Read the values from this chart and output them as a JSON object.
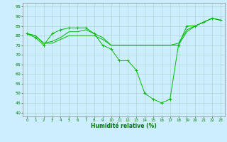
{
  "title": "",
  "xlabel": "Humidité relative (%)",
  "ylabel": "",
  "background_color": "#cceeff",
  "grid_color": "#aacccc",
  "line_color": "#00bb00",
  "xlim": [
    -0.5,
    23.5
  ],
  "ylim": [
    38,
    97
  ],
  "yticks": [
    40,
    45,
    50,
    55,
    60,
    65,
    70,
    75,
    80,
    85,
    90,
    95
  ],
  "xticks": [
    0,
    1,
    2,
    3,
    4,
    5,
    6,
    7,
    8,
    9,
    10,
    11,
    12,
    13,
    14,
    15,
    16,
    17,
    18,
    19,
    20,
    21,
    22,
    23
  ],
  "series": [
    {
      "x": [
        0,
        1,
        2,
        3,
        4,
        5,
        6,
        7,
        8,
        9,
        10,
        11,
        12,
        13,
        14,
        15,
        16,
        17,
        18,
        19,
        20,
        21,
        22,
        23
      ],
      "y": [
        81,
        79,
        75,
        81,
        83,
        84,
        84,
        84,
        81,
        75,
        73,
        67,
        67,
        62,
        50,
        47,
        45,
        47,
        75,
        85,
        85,
        87,
        89,
        88
      ],
      "marker": true
    },
    {
      "x": [
        0,
        1,
        2,
        3,
        4,
        5,
        6,
        7,
        8,
        9,
        10,
        11,
        12,
        13,
        14,
        15,
        16,
        17,
        18,
        19,
        20,
        21,
        22,
        23
      ],
      "y": [
        81,
        80,
        76,
        76,
        78,
        80,
        80,
        80,
        80,
        78,
        75,
        75,
        75,
        75,
        75,
        75,
        75,
        75,
        75,
        82,
        85,
        87,
        89,
        88
      ],
      "marker": false
    },
    {
      "x": [
        0,
        1,
        2,
        3,
        4,
        5,
        6,
        7,
        8,
        9,
        10,
        11,
        12,
        13,
        14,
        15,
        16,
        17,
        18,
        19,
        20,
        21,
        22,
        23
      ],
      "y": [
        81,
        80,
        76,
        77,
        79,
        82,
        82,
        83,
        81,
        79,
        75,
        75,
        75,
        75,
        75,
        75,
        75,
        75,
        76,
        83,
        85,
        87,
        89,
        88
      ],
      "marker": false
    }
  ]
}
